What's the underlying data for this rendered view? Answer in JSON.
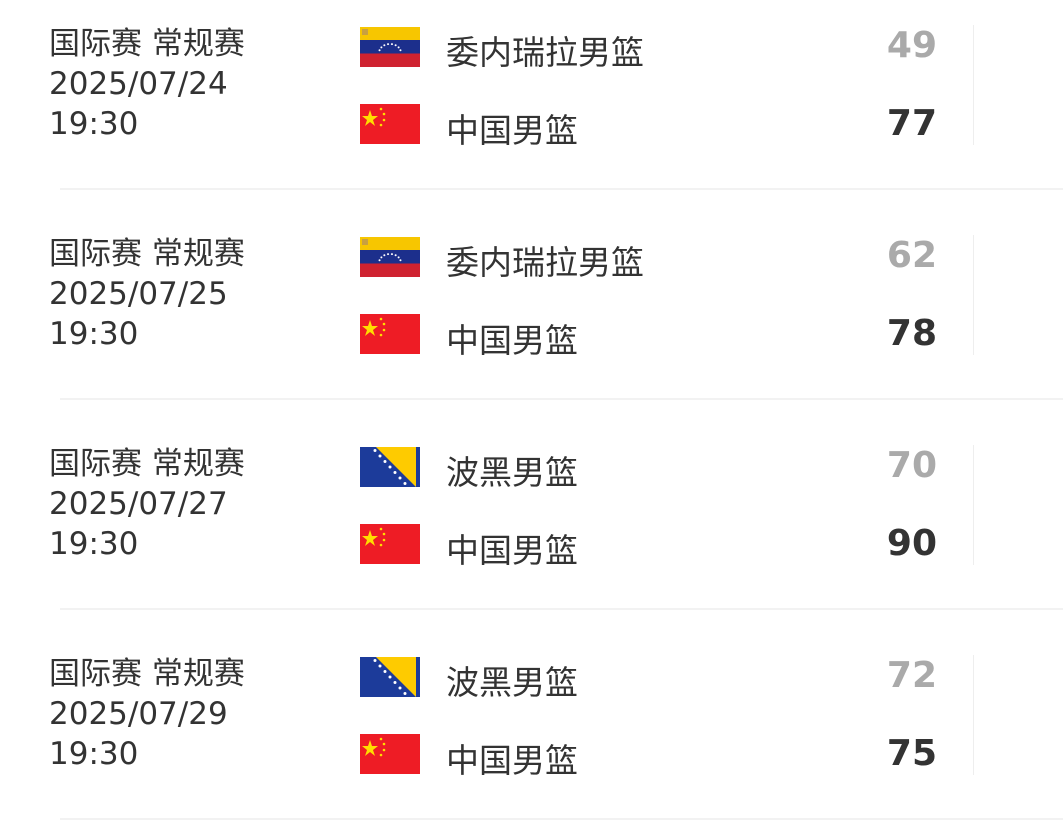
{
  "matches": [
    {
      "league": "国际赛 常规赛",
      "date": "2025/07/24",
      "time": "19:30",
      "home": {
        "name": "委内瑞拉男篮",
        "flag": "venezuela-flag",
        "score": "49"
      },
      "away": {
        "name": "中国男篮",
        "flag": "china-flag",
        "score": "77"
      }
    },
    {
      "league": "国际赛 常规赛",
      "date": "2025/07/25",
      "time": "19:30",
      "home": {
        "name": "委内瑞拉男篮",
        "flag": "venezuela-flag",
        "score": "62"
      },
      "away": {
        "name": "中国男篮",
        "flag": "china-flag",
        "score": "78"
      }
    },
    {
      "league": "国际赛 常规赛",
      "date": "2025/07/27",
      "time": "19:30",
      "home": {
        "name": "波黑男篮",
        "flag": "bosnia-flag",
        "score": "70"
      },
      "away": {
        "name": "中国男篮",
        "flag": "china-flag",
        "score": "90"
      }
    },
    {
      "league": "国际赛 常规赛",
      "date": "2025/07/29",
      "time": "19:30",
      "home": {
        "name": "波黑男篮",
        "flag": "bosnia-flag",
        "score": "72"
      },
      "away": {
        "name": "中国男篮",
        "flag": "china-flag",
        "score": "75"
      }
    }
  ],
  "colors": {
    "loser_score": "#aaaaaa",
    "winner_score": "#333333"
  }
}
